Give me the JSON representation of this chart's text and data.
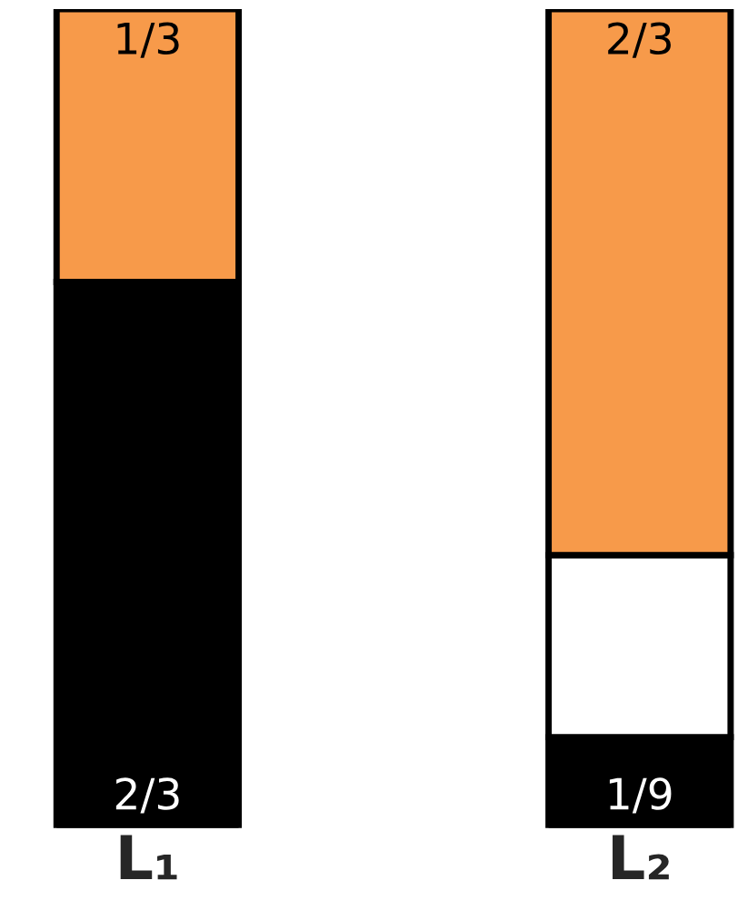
{
  "chart_data": {
    "type": "bar",
    "stacked": true,
    "categories": [
      "L₁",
      "L₂"
    ],
    "ylim": [
      0,
      1
    ],
    "series": [
      {
        "color": "#000000",
        "values": [
          0.6667,
          0.1111
        ],
        "value_labels": [
          "2/3",
          "1/9"
        ]
      },
      {
        "color": "#ffffff",
        "values": [
          0,
          0.2222
        ],
        "value_labels": [
          null,
          null
        ]
      },
      {
        "color": "#f79a4a",
        "values": [
          0.3333,
          0.6667
        ],
        "value_labels": [
          "1/3",
          "2/3"
        ]
      }
    ]
  }
}
